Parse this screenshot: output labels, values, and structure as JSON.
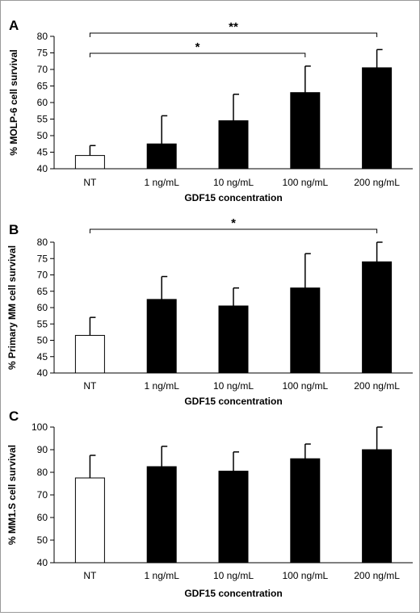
{
  "chart_data": [
    {
      "type": "bar",
      "panel_label": "A",
      "categories": [
        "NT",
        "1 ng/mL",
        "10 ng/mL",
        "100 ng/mL",
        "200 ng/mL"
      ],
      "values": [
        44,
        47.5,
        54.5,
        63,
        70.5
      ],
      "errors": [
        3,
        8.5,
        8,
        8,
        5.5
      ],
      "fill": [
        "white",
        "black",
        "black",
        "black",
        "black"
      ],
      "xlabel": "GDF15 concentration",
      "ylabel": "% MOLP-6 cell survival",
      "ylim": [
        40,
        80
      ],
      "yticks": [
        40,
        45,
        50,
        55,
        60,
        65,
        70,
        75,
        80
      ],
      "significance": [
        {
          "from": 0,
          "to": 4,
          "label": "**"
        },
        {
          "from": 0,
          "to": 3,
          "label": "*"
        }
      ]
    },
    {
      "type": "bar",
      "panel_label": "B",
      "categories": [
        "NT",
        "1 ng/mL",
        "10 ng/mL",
        "100 ng/mL",
        "200 ng/mL"
      ],
      "values": [
        51.5,
        62.5,
        60.5,
        66,
        74
      ],
      "errors": [
        5.5,
        7,
        5.5,
        10.5,
        6
      ],
      "fill": [
        "white",
        "black",
        "black",
        "black",
        "black"
      ],
      "xlabel": "GDF15 concentration",
      "ylabel": "% Primary MM cell survival",
      "ylim": [
        40,
        80
      ],
      "yticks": [
        40,
        45,
        50,
        55,
        60,
        65,
        70,
        75,
        80
      ],
      "significance": [
        {
          "from": 0,
          "to": 4,
          "label": "*"
        }
      ]
    },
    {
      "type": "bar",
      "panel_label": "C",
      "categories": [
        "NT",
        "1 ng/mL",
        "10 ng/mL",
        "100 ng/mL",
        "200 ng/mL"
      ],
      "values": [
        77.5,
        82.5,
        80.5,
        86,
        90
      ],
      "errors": [
        10,
        9,
        8.5,
        6.5,
        10
      ],
      "fill": [
        "white",
        "black",
        "black",
        "black",
        "black"
      ],
      "xlabel": "GDF15 concentration",
      "ylabel": "% MM1.S cell survival",
      "ylim": [
        40,
        100
      ],
      "yticks": [
        40,
        50,
        60,
        70,
        80,
        90,
        100
      ],
      "significance": []
    }
  ],
  "colors": {
    "bar_fill": "#000000",
    "control_fill": "#ffffff",
    "line": "#000000",
    "frame": "#9a9a9a"
  }
}
